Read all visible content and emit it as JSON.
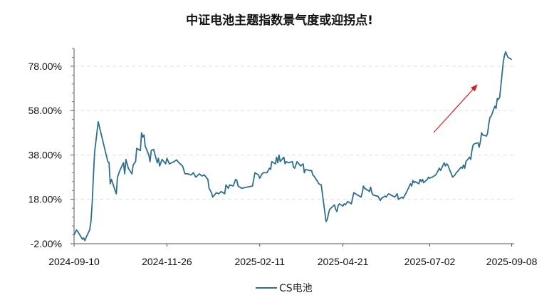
{
  "chart_data": {
    "type": "line",
    "title": "中证电池主题指数景气度或迎拐点!",
    "xlabel": "",
    "ylabel": "",
    "ylim": [
      -2.0,
      86.0
    ],
    "y_ticks": [
      "78.00%",
      "58.00%",
      "38.00%",
      "18.00%",
      "-2.00%"
    ],
    "y_tick_values": [
      78,
      58,
      38,
      18,
      -2
    ],
    "x_range": [
      "2024-09-10",
      "2025-09-10"
    ],
    "x_ticks": [
      "2024-09-10",
      "2024-11-26",
      "2025-02-11",
      "2025-04-21",
      "2025-07-02",
      "2025-09-08"
    ],
    "grid": "horizontal dashed",
    "legend_position": "bottom",
    "annotation": "red arrow pointing up-right",
    "colors": {
      "series": "#2E6E8E",
      "arrow": "#D42020",
      "grid": "#DDDDDD"
    },
    "series": [
      {
        "name": "CS电池",
        "points": [
          [
            "2024-09-10",
            2.0
          ],
          [
            "2024-09-12",
            4.2
          ],
          [
            "2024-09-13",
            3.5
          ],
          [
            "2024-09-17",
            0.0
          ],
          [
            "2024-09-18",
            0.6
          ],
          [
            "2024-09-19",
            -0.6
          ],
          [
            "2024-09-20",
            0.8
          ],
          [
            "2024-09-23",
            4.3
          ],
          [
            "2024-09-24",
            8.0
          ],
          [
            "2024-09-25",
            16.0
          ],
          [
            "2024-09-26",
            28.0
          ],
          [
            "2024-09-27",
            39.0
          ],
          [
            "2024-09-30",
            53.0
          ],
          [
            "2024-10-08",
            35.0
          ],
          [
            "2024-10-09",
            34.6
          ],
          [
            "2024-10-10",
            25.0
          ],
          [
            "2024-10-11",
            27.0
          ],
          [
            "2024-10-14",
            22.0
          ],
          [
            "2024-10-15",
            20.5
          ],
          [
            "2024-10-16",
            28.0
          ],
          [
            "2024-10-18",
            31.0
          ],
          [
            "2024-10-21",
            34.5
          ],
          [
            "2024-10-22",
            29.5
          ],
          [
            "2024-10-23",
            36.0
          ],
          [
            "2024-10-25",
            32.0
          ],
          [
            "2024-10-28",
            29.5
          ],
          [
            "2024-10-29",
            33.5
          ],
          [
            "2024-10-31",
            35.0
          ],
          [
            "2024-11-01",
            41.0
          ],
          [
            "2024-11-04",
            40.0
          ],
          [
            "2024-11-05",
            48.0
          ],
          [
            "2024-11-06",
            46.0
          ],
          [
            "2024-11-07",
            47.0
          ],
          [
            "2024-11-08",
            42.0
          ],
          [
            "2024-11-11",
            38.0
          ],
          [
            "2024-11-12",
            35.0
          ],
          [
            "2024-11-13",
            40.0
          ],
          [
            "2024-11-15",
            40.5
          ],
          [
            "2024-11-18",
            34.5
          ],
          [
            "2024-11-19",
            36.5
          ],
          [
            "2024-11-20",
            33.0
          ],
          [
            "2024-11-22",
            36.0
          ],
          [
            "2024-11-25",
            34.0
          ],
          [
            "2024-11-26",
            36.5
          ],
          [
            "2024-11-28",
            34.0
          ],
          [
            "2024-12-02",
            35.0
          ],
          [
            "2024-12-04",
            35.8
          ],
          [
            "2024-12-06",
            34.5
          ],
          [
            "2024-12-09",
            33.0
          ],
          [
            "2024-12-11",
            29.5
          ],
          [
            "2024-12-13",
            29.5
          ],
          [
            "2024-12-16",
            29.0
          ],
          [
            "2024-12-18",
            30.0
          ],
          [
            "2024-12-20",
            28.0
          ],
          [
            "2024-12-23",
            29.5
          ],
          [
            "2024-12-25",
            28.5
          ],
          [
            "2024-12-27",
            29.0
          ],
          [
            "2024-12-30",
            27.0
          ],
          [
            "2024-12-31",
            23.0
          ],
          [
            "2025-01-02",
            21.0
          ],
          [
            "2025-01-03",
            19.0
          ],
          [
            "2025-01-06",
            21.0
          ],
          [
            "2025-01-08",
            20.5
          ],
          [
            "2025-01-10",
            21.5
          ],
          [
            "2025-01-13",
            20.5
          ],
          [
            "2025-01-14",
            24.5
          ],
          [
            "2025-01-16",
            23.0
          ],
          [
            "2025-01-17",
            24.5
          ],
          [
            "2025-01-20",
            24.0
          ],
          [
            "2025-01-22",
            27.0
          ],
          [
            "2025-01-23",
            26.5
          ],
          [
            "2025-01-24",
            24.0
          ],
          [
            "2025-01-27",
            23.0
          ],
          [
            "2025-02-05",
            24.0
          ],
          [
            "2025-02-07",
            30.0
          ],
          [
            "2025-02-10",
            29.0
          ],
          [
            "2025-02-11",
            27.5
          ],
          [
            "2025-02-13",
            29.5
          ],
          [
            "2025-02-14",
            30.0
          ],
          [
            "2025-02-17",
            30.0
          ],
          [
            "2025-02-19",
            32.0
          ],
          [
            "2025-02-20",
            31.5
          ],
          [
            "2025-02-21",
            35.0
          ],
          [
            "2025-02-24",
            34.0
          ],
          [
            "2025-02-25",
            37.0
          ],
          [
            "2025-02-26",
            34.5
          ],
          [
            "2025-02-27",
            38.0
          ],
          [
            "2025-02-28",
            35.0
          ],
          [
            "2025-03-03",
            37.0
          ],
          [
            "2025-03-04",
            34.0
          ],
          [
            "2025-03-05",
            35.0
          ],
          [
            "2025-03-07",
            34.5
          ],
          [
            "2025-03-10",
            35.0
          ],
          [
            "2025-03-11",
            32.5
          ],
          [
            "2025-03-12",
            32.0
          ],
          [
            "2025-03-14",
            35.0
          ],
          [
            "2025-03-17",
            33.0
          ],
          [
            "2025-03-19",
            34.0
          ],
          [
            "2025-03-20",
            30.0
          ],
          [
            "2025-03-21",
            31.5
          ],
          [
            "2025-03-24",
            31.0
          ],
          [
            "2025-03-26",
            31.0
          ],
          [
            "2025-03-27",
            29.0
          ],
          [
            "2025-03-28",
            28.5
          ],
          [
            "2025-03-31",
            26.0
          ],
          [
            "2025-04-01",
            25.0
          ],
          [
            "2025-04-03",
            24.5
          ],
          [
            "2025-04-07",
            8.0
          ],
          [
            "2025-04-08",
            9.0
          ],
          [
            "2025-04-09",
            11.5
          ],
          [
            "2025-04-10",
            13.5
          ],
          [
            "2025-04-11",
            14.0
          ],
          [
            "2025-04-14",
            15.5
          ],
          [
            "2025-04-15",
            13.5
          ],
          [
            "2025-04-16",
            12.5
          ],
          [
            "2025-04-17",
            15.0
          ],
          [
            "2025-04-18",
            16.0
          ],
          [
            "2025-04-21",
            15.0
          ],
          [
            "2025-04-22",
            16.0
          ],
          [
            "2025-04-23",
            15.5
          ],
          [
            "2025-04-25",
            17.0
          ],
          [
            "2025-04-28",
            16.0
          ],
          [
            "2025-04-29",
            18.5
          ],
          [
            "2025-04-30",
            21.0
          ],
          [
            "2025-05-06",
            19.0
          ],
          [
            "2025-05-07",
            21.0
          ],
          [
            "2025-05-08",
            24.0
          ],
          [
            "2025-05-09",
            23.0
          ],
          [
            "2025-05-12",
            22.0
          ],
          [
            "2025-05-13",
            21.5
          ],
          [
            "2025-05-14",
            23.5
          ],
          [
            "2025-05-15",
            21.0
          ],
          [
            "2025-05-16",
            20.0
          ],
          [
            "2025-05-19",
            19.5
          ],
          [
            "2025-05-20",
            19.5
          ],
          [
            "2025-05-21",
            18.5
          ],
          [
            "2025-05-22",
            17.5
          ],
          [
            "2025-05-23",
            18.5
          ],
          [
            "2025-05-26",
            19.5
          ],
          [
            "2025-05-27",
            19.0
          ],
          [
            "2025-05-28",
            20.0
          ],
          [
            "2025-05-29",
            20.5
          ],
          [
            "2025-06-03",
            19.0
          ],
          [
            "2025-06-05",
            20.5
          ],
          [
            "2025-06-06",
            18.0
          ],
          [
            "2025-06-09",
            19.0
          ],
          [
            "2025-06-10",
            18.5
          ],
          [
            "2025-06-12",
            20.5
          ],
          [
            "2025-06-13",
            21.5
          ],
          [
            "2025-06-16",
            25.0
          ],
          [
            "2025-06-17",
            24.0
          ],
          [
            "2025-06-18",
            26.5
          ],
          [
            "2025-06-19",
            25.5
          ],
          [
            "2025-06-20",
            26.0
          ],
          [
            "2025-06-23",
            25.0
          ],
          [
            "2025-06-24",
            27.0
          ],
          [
            "2025-06-25",
            26.0
          ],
          [
            "2025-06-26",
            27.0
          ],
          [
            "2025-06-27",
            25.5
          ],
          [
            "2025-06-30",
            27.0
          ],
          [
            "2025-07-01",
            28.0
          ],
          [
            "2025-07-02",
            27.5
          ],
          [
            "2025-07-04",
            28.0
          ],
          [
            "2025-07-07",
            29.0
          ],
          [
            "2025-07-08",
            30.0
          ],
          [
            "2025-07-10",
            32.0
          ],
          [
            "2025-07-11",
            31.0
          ],
          [
            "2025-07-14",
            34.5
          ],
          [
            "2025-07-15",
            33.0
          ],
          [
            "2025-07-16",
            34.0
          ],
          [
            "2025-07-17",
            33.5
          ],
          [
            "2025-07-18",
            32.0
          ],
          [
            "2025-07-21",
            28.0
          ],
          [
            "2025-07-22",
            28.5
          ],
          [
            "2025-07-23",
            29.0
          ],
          [
            "2025-07-24",
            30.0
          ],
          [
            "2025-07-25",
            30.5
          ],
          [
            "2025-07-28",
            32.5
          ],
          [
            "2025-07-29",
            32.0
          ],
          [
            "2025-07-30",
            33.5
          ],
          [
            "2025-07-31",
            32.0
          ],
          [
            "2025-08-01",
            35.0
          ],
          [
            "2025-08-04",
            37.0
          ],
          [
            "2025-08-05",
            36.0
          ],
          [
            "2025-08-06",
            40.0
          ],
          [
            "2025-08-07",
            42.5
          ],
          [
            "2025-08-08",
            43.0
          ],
          [
            "2025-08-11",
            43.5
          ],
          [
            "2025-08-12",
            41.5
          ],
          [
            "2025-08-13",
            44.0
          ],
          [
            "2025-08-14",
            48.0
          ],
          [
            "2025-08-15",
            47.0
          ],
          [
            "2025-08-18",
            46.5
          ],
          [
            "2025-08-19",
            48.0
          ],
          [
            "2025-08-20",
            52.0
          ],
          [
            "2025-08-21",
            55.0
          ],
          [
            "2025-08-22",
            55.5
          ],
          [
            "2025-08-25",
            60.0
          ],
          [
            "2025-08-26",
            59.0
          ],
          [
            "2025-08-27",
            63.5
          ],
          [
            "2025-08-28",
            63.0
          ],
          [
            "2025-08-29",
            64.0
          ],
          [
            "2025-09-01",
            80.0
          ],
          [
            "2025-09-02",
            83.0
          ],
          [
            "2025-09-03",
            84.5
          ],
          [
            "2025-09-04",
            83.0
          ],
          [
            "2025-09-05",
            82.0
          ],
          [
            "2025-09-08",
            81.0
          ]
        ]
      }
    ]
  }
}
